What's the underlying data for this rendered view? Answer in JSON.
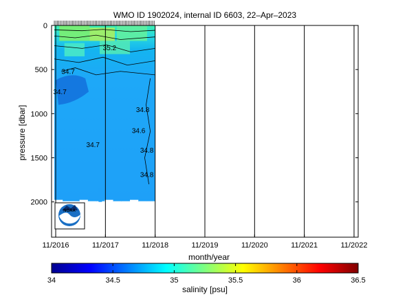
{
  "chart_data": {
    "type": "heatmap",
    "title": "WMO ID 1902024, internal ID 6603, 22–Apr–2023",
    "xlabel": "month/year",
    "ylabel": "pressure [dbar]",
    "x_ticks": [
      "11/2016",
      "11/2017",
      "11/2018",
      "11/2019",
      "11/2020",
      "11/2021",
      "11/2022"
    ],
    "x_range": [
      "2016-10",
      "2022-12"
    ],
    "y_ticks": [
      0,
      500,
      1000,
      1500,
      2000
    ],
    "ylim": [
      2400,
      0
    ],
    "y_reversed": true,
    "profile_period": [
      "2016-11",
      "2018-11"
    ],
    "profile_max_pressure": 2000,
    "colorbar": {
      "label": "salinity [psu]",
      "ticks": [
        34,
        34.5,
        35,
        35.5,
        36,
        36.5
      ],
      "range": [
        34,
        36.5
      ],
      "colormap": "jet"
    },
    "contour_labels": [
      {
        "text": "34.7",
        "x": "2017-08",
        "y": 1380
      },
      {
        "text": "34.8",
        "x": "2018-08",
        "y": 980
      },
      {
        "text": "34.6",
        "x": "2018-07",
        "y": 1220
      },
      {
        "text": "34.8",
        "x": "2018-09",
        "y": 1440
      },
      {
        "text": "34.8",
        "x": "2018-09",
        "y": 1720
      },
      {
        "text": "34.7",
        "x": "2017-02",
        "y": 550
      },
      {
        "text": "34.7",
        "x": "2016-12",
        "y": 780
      },
      {
        "text": "35.2",
        "x": "2017-12",
        "y": 280
      }
    ],
    "logo": "NOAA"
  }
}
